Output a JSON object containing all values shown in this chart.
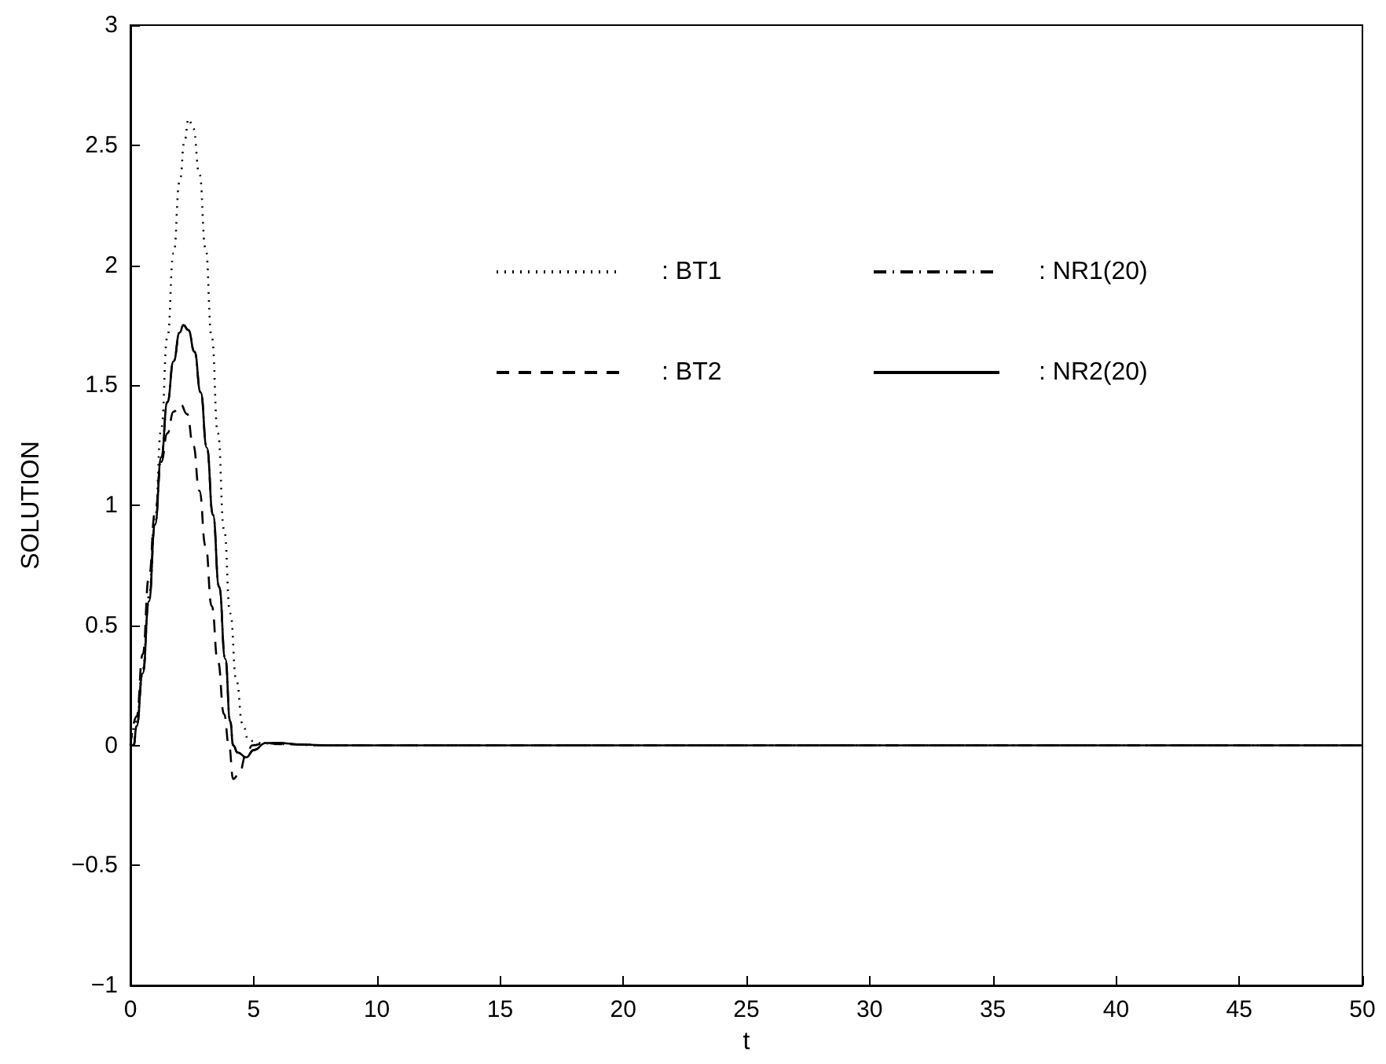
{
  "chart_data": {
    "type": "line",
    "xlabel": "t",
    "ylabel": "SOLUTION",
    "xlim": [
      0,
      50
    ],
    "xticks": [
      0,
      5,
      10,
      15,
      20,
      25,
      30,
      35,
      40,
      45,
      50
    ],
    "ylim": [
      -1,
      3
    ],
    "yticks": [
      -1,
      -0.5,
      0,
      0.5,
      1,
      1.5,
      2,
      2.5,
      3
    ],
    "grid": false,
    "legend": "top",
    "marker": "none",
    "series": [
      {
        "name": ": BT1",
        "color": "#000000",
        "line_style": "dotted",
        "x": [
          0,
          0.25,
          0.5,
          0.75,
          1,
          1.25,
          1.5,
          1.75,
          2,
          2.2,
          2.36,
          2.55,
          2.8,
          3.05,
          3.3,
          3.55,
          3.8,
          4.05,
          4.3,
          4.55,
          4.8,
          5.2,
          6,
          8,
          50
        ],
        "values": [
          0,
          0.1,
          0.32,
          0.62,
          0.95,
          1.32,
          1.7,
          2.05,
          2.35,
          2.52,
          2.61,
          2.57,
          2.38,
          2.07,
          1.7,
          1.3,
          0.9,
          0.55,
          0.27,
          0.09,
          0.02,
          0.01,
          0.005,
          0,
          0
        ]
      },
      {
        "name": ": BT2",
        "color": "#000000",
        "line_style": "dashed",
        "x": [
          0,
          0.25,
          0.5,
          0.75,
          1,
          1.25,
          1.5,
          1.75,
          2.04,
          2.3,
          2.55,
          2.8,
          3.05,
          3.3,
          3.55,
          3.8,
          4,
          4.17,
          4.4,
          4.7,
          4.95,
          5.5,
          6,
          8,
          50
        ],
        "values": [
          0,
          0.12,
          0.38,
          0.7,
          0.97,
          1.18,
          1.3,
          1.39,
          1.42,
          1.38,
          1.25,
          1.06,
          0.83,
          0.58,
          0.35,
          0.13,
          0,
          -0.14,
          -0.12,
          -0.04,
          0,
          0.01,
          0.005,
          0,
          0
        ]
      },
      {
        "name": ": NR1(20)",
        "color": "#000000",
        "line_style": "dashdot",
        "x": [
          0,
          0.13,
          0.25,
          0.5,
          0.75,
          1,
          1.25,
          1.5,
          1.75,
          2,
          2.15,
          2.35,
          2.6,
          2.85,
          3.1,
          3.35,
          3.6,
          3.85,
          4.05,
          4.17,
          4.35,
          4.7,
          5,
          5.5,
          6,
          7,
          8,
          50
        ],
        "values": [
          0,
          0,
          0.08,
          0.3,
          0.6,
          0.92,
          1.2,
          1.43,
          1.6,
          1.72,
          1.75,
          1.73,
          1.64,
          1.47,
          1.24,
          0.96,
          0.66,
          0.36,
          0.1,
          0,
          -0.03,
          -0.05,
          -0.02,
          0.01,
          0.01,
          0.003,
          0,
          0
        ]
      },
      {
        "name": ": NR2(20)",
        "color": "#000000",
        "line_style": "solid",
        "x": [
          0,
          0.13,
          0.25,
          0.5,
          0.75,
          1,
          1.25,
          1.5,
          1.75,
          2,
          2.15,
          2.35,
          2.6,
          2.85,
          3.1,
          3.35,
          3.6,
          3.85,
          4.05,
          4.17,
          4.35,
          4.7,
          5,
          5.5,
          6,
          7,
          8,
          50
        ],
        "values": [
          0,
          0,
          0.08,
          0.3,
          0.6,
          0.92,
          1.2,
          1.43,
          1.6,
          1.72,
          1.75,
          1.73,
          1.64,
          1.47,
          1.24,
          0.96,
          0.66,
          0.36,
          0.1,
          0,
          -0.03,
          -0.05,
          -0.02,
          0.01,
          0.01,
          0.003,
          0,
          0
        ]
      }
    ]
  }
}
